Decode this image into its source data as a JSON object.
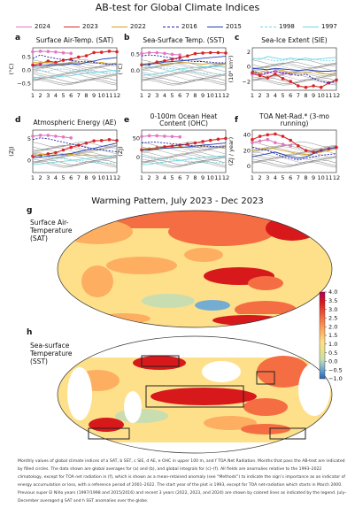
{
  "figure": {
    "title": "AB-test for Global Climate Indices",
    "legend": [
      {
        "label": "2024",
        "color": "#e377c2",
        "dash": "solid"
      },
      {
        "label": "2023",
        "color": "#d62728",
        "dash": "solid"
      },
      {
        "label": "2022",
        "color": "#d4a017",
        "dash": "solid"
      },
      {
        "label": "2016",
        "color": "#1f1fb4",
        "dash": "dashed"
      },
      {
        "label": "2015",
        "color": "#1f3fb4",
        "dash": "solid"
      },
      {
        "label": "1998",
        "color": "#6fd6e6",
        "dash": "dashed"
      },
      {
        "label": "1997",
        "color": "#6fd6e6",
        "dash": "solid"
      }
    ],
    "panels": [
      {
        "letter": "a",
        "title": "Surface Air-Temp. (SAT)",
        "ylabel": "(°C)",
        "yticks": [
          "0.5",
          "0.0",
          "−0.5"
        ]
      },
      {
        "letter": "b",
        "title": "Sea-Surface Temp. (SST)",
        "ylabel": "(°C)",
        "yticks": [
          "0.5",
          "0.0"
        ]
      },
      {
        "letter": "c",
        "title": "Sea-Ice Extent (SIE)",
        "ylabel": "(10⁶ km²)",
        "yticks": [
          "2",
          "0",
          "−2"
        ]
      },
      {
        "letter": "d",
        "title": "Atmospheric Energy (AE)",
        "ylabel": "(ZJ)",
        "yticks": [
          "5",
          "0"
        ]
      },
      {
        "letter": "e",
        "title": "0-100m Ocean Heat Content (OHC)",
        "ylabel": "(ZJ)",
        "yticks": [
          "50",
          "0"
        ]
      },
      {
        "letter": "f",
        "title": "TOA Net-Rad.* (3-mo running)",
        "ylabel": "(ZJ / year)",
        "yticks": [
          "40",
          "20",
          "0"
        ]
      }
    ],
    "xticks": [
      "1",
      "2",
      "3",
      "4",
      "5",
      "6",
      "7",
      "8",
      "9",
      "10",
      "11",
      "12"
    ],
    "map_title": "Warming Pattern, July 2023 - Dec 2023",
    "maps": [
      {
        "letter": "g",
        "label": "Surface Air- Temperature (SAT)"
      },
      {
        "letter": "h",
        "label": "Sea-surface Temperature (SST)"
      }
    ],
    "colorbar": {
      "ticks": [
        "4.0",
        "3.5",
        "3.0",
        "2.5",
        "2.0",
        "1.5",
        "1.0",
        "0.5",
        "0.0",
        "−0.5",
        "−1.0"
      ]
    },
    "caption": "Monthly values of global climate indices of a SAT, b SST, c SIE, d AE, e OHC in upper 100 m, and f TOA Net Radiation. Months that pass the AB-test are indicated by filled circles. The data shown are global averages for (a) and (b), and global integrals for (c)–(f). All fields are anomalies relative to the 1993–2022 climatology, except for TOA net radiation in (f), which is shown as a mean-retained anomaly (see “Methods”) to indicate the sign’s importance as an indicator of energy accumulation or loss, with a reference period of 2001–2022. The start year of the plot is 1993, except for TOA net-radiation which starts in March 2000. Previous super El Niño years (1997/1998 and 2015/2016) and recent 3 years (2022, 2023, and 2024) are shown by colored lines as indicated by the legend. July–December averaged g SAT and h SST anomalies over the globe."
  },
  "chart_data": [
    {
      "type": "line",
      "panel": "a",
      "title": "Surface Air-Temp. (SAT)",
      "ylabel": "(°C)",
      "x": [
        1,
        2,
        3,
        4,
        5,
        6,
        7,
        8,
        9,
        10,
        11,
        12
      ],
      "ylim": [
        -0.75,
        0.85
      ],
      "series": [
        {
          "name": "2024",
          "values": [
            0.7,
            0.72,
            0.71,
            0.69,
            0.66,
            0.64,
            null,
            null,
            null,
            null,
            null,
            null
          ]
        },
        {
          "name": "2023",
          "values": [
            0.2,
            0.25,
            0.35,
            0.3,
            0.38,
            0.42,
            0.5,
            0.55,
            0.67,
            0.68,
            0.72,
            0.7
          ]
        },
        {
          "name": "2022",
          "values": [
            0.3,
            0.28,
            0.3,
            0.25,
            0.24,
            0.28,
            0.26,
            0.3,
            0.26,
            0.3,
            0.24,
            0.28
          ]
        },
        {
          "name": "2016",
          "values": [
            0.45,
            0.58,
            0.5,
            0.45,
            0.4,
            0.38,
            0.32,
            0.35,
            0.3,
            0.25,
            0.24,
            0.22
          ]
        },
        {
          "name": "2015",
          "values": [
            0.15,
            0.18,
            0.2,
            0.22,
            0.2,
            0.25,
            0.22,
            0.3,
            0.35,
            0.42,
            0.45,
            0.48
          ]
        },
        {
          "name": "1998",
          "values": [
            -0.05,
            0.0,
            -0.05,
            0.05,
            0.05,
            0.0,
            0.05,
            -0.02,
            -0.05,
            -0.08,
            -0.1,
            -0.12
          ]
        },
        {
          "name": "1997",
          "values": [
            -0.3,
            -0.25,
            -0.28,
            -0.25,
            -0.22,
            -0.2,
            -0.15,
            -0.1,
            -0.08,
            -0.05,
            -0.02,
            0.0
          ]
        }
      ]
    },
    {
      "type": "line",
      "panel": "b",
      "title": "Sea-Surface Temp. (SST)",
      "ylabel": "(°C)",
      "x": [
        1,
        2,
        3,
        4,
        5,
        6,
        7,
        8,
        9,
        10,
        11,
        12
      ],
      "ylim": [
        -0.6,
        0.7
      ],
      "series": [
        {
          "name": "2024",
          "values": [
            0.52,
            0.55,
            0.55,
            0.53,
            0.5,
            0.48,
            null,
            null,
            null,
            null,
            null,
            null
          ]
        },
        {
          "name": "2023",
          "values": [
            0.18,
            0.2,
            0.26,
            0.3,
            0.35,
            0.4,
            0.45,
            0.52,
            0.54,
            0.55,
            0.55,
            0.54
          ]
        },
        {
          "name": "2022",
          "values": [
            0.2,
            0.22,
            0.22,
            0.2,
            0.22,
            0.24,
            0.24,
            0.22,
            0.2,
            0.22,
            0.22,
            0.2
          ]
        },
        {
          "name": "2016",
          "values": [
            0.45,
            0.48,
            0.46,
            0.42,
            0.38,
            0.34,
            0.3,
            0.28,
            0.28,
            0.26,
            0.24,
            0.24
          ]
        },
        {
          "name": "2015",
          "values": [
            0.18,
            0.2,
            0.22,
            0.26,
            0.28,
            0.3,
            0.32,
            0.35,
            0.38,
            0.4,
            0.42,
            0.44
          ]
        },
        {
          "name": "1998",
          "values": [
            0.1,
            0.12,
            0.1,
            0.08,
            0.06,
            0.02,
            -0.02,
            -0.05,
            -0.08,
            -0.08,
            -0.1,
            -0.12
          ]
        },
        {
          "name": "1997",
          "values": [
            -0.15,
            -0.12,
            -0.1,
            -0.05,
            0.0,
            0.05,
            0.08,
            0.1,
            0.12,
            0.12,
            0.12,
            0.1
          ]
        }
      ]
    },
    {
      "type": "line",
      "panel": "c",
      "title": "Sea-Ice Extent (SIE)",
      "ylabel": "(10⁶ km²)",
      "x": [
        1,
        2,
        3,
        4,
        5,
        6,
        7,
        8,
        9,
        10,
        11,
        12
      ],
      "ylim": [
        -3.2,
        2.6
      ],
      "series": [
        {
          "name": "2024",
          "values": [
            -1.0,
            -1.2,
            -0.8,
            -0.6,
            -0.9,
            -1.0,
            null,
            null,
            null,
            null,
            null,
            null
          ]
        },
        {
          "name": "2023",
          "values": [
            -0.8,
            -1.2,
            -1.5,
            -1.0,
            -1.6,
            -2.0,
            -2.6,
            -2.8,
            -2.6,
            -2.8,
            -2.2,
            -1.8
          ]
        },
        {
          "name": "2022",
          "values": [
            -0.6,
            -0.8,
            -0.4,
            -0.3,
            -0.5,
            -0.8,
            -0.9,
            -0.8,
            -0.6,
            -0.9,
            -1.0,
            -0.8
          ]
        },
        {
          "name": "2016",
          "values": [
            -0.5,
            -1.0,
            -0.8,
            -0.6,
            -0.8,
            -1.0,
            -1.2,
            -1.0,
            -1.6,
            -2.0,
            -2.2,
            -2.0
          ]
        },
        {
          "name": "2015",
          "values": [
            -0.2,
            -0.3,
            -0.4,
            -0.2,
            -0.3,
            -0.4,
            -0.5,
            -0.4,
            -0.5,
            -0.6,
            -0.6,
            -0.5
          ]
        },
        {
          "name": "1998",
          "values": [
            1.0,
            1.2,
            1.0,
            0.8,
            0.9,
            1.0,
            1.1,
            0.9,
            1.0,
            0.9,
            0.8,
            0.9
          ]
        },
        {
          "name": "1997",
          "values": [
            1.2,
            1.0,
            1.4,
            1.2,
            1.0,
            1.2,
            1.0,
            1.2,
            1.0,
            1.1,
            1.2,
            1.3
          ]
        }
      ]
    },
    {
      "type": "line",
      "panel": "d",
      "title": "Atmospheric Energy (AE)",
      "ylabel": "(ZJ)",
      "x": [
        1,
        2,
        3,
        4,
        5,
        6,
        7,
        8,
        9,
        10,
        11,
        12
      ],
      "ylim": [
        -2.8,
        7.0
      ],
      "series": [
        {
          "name": "2024",
          "values": [
            5.6,
            5.8,
            5.8,
            5.6,
            5.4,
            5.2,
            null,
            null,
            null,
            null,
            null,
            null
          ]
        },
        {
          "name": "2023",
          "values": [
            1.0,
            1.2,
            1.5,
            1.8,
            2.4,
            3.0,
            3.5,
            4.0,
            4.5,
            4.6,
            4.8,
            4.6
          ]
        },
        {
          "name": "2022",
          "values": [
            1.6,
            1.4,
            1.2,
            1.3,
            1.2,
            1.4,
            1.2,
            1.3,
            1.1,
            1.2,
            1.0,
            1.2
          ]
        },
        {
          "name": "2016",
          "values": [
            4.8,
            5.2,
            5.0,
            4.6,
            4.2,
            3.8,
            3.4,
            3.0,
            2.6,
            2.4,
            2.2,
            2.0
          ]
        },
        {
          "name": "2015",
          "values": [
            0.6,
            0.8,
            1.0,
            1.2,
            1.4,
            1.6,
            2.0,
            2.4,
            2.8,
            3.2,
            3.6,
            4.0
          ]
        },
        {
          "name": "1998",
          "values": [
            1.2,
            1.0,
            0.8,
            0.6,
            0.4,
            0.2,
            0.0,
            -0.2,
            -0.4,
            -0.5,
            -0.6,
            -0.8
          ]
        },
        {
          "name": "1997",
          "values": [
            -1.0,
            -0.8,
            -0.6,
            -0.4,
            -0.2,
            0.0,
            0.2,
            0.4,
            0.6,
            0.8,
            1.0,
            1.2
          ]
        }
      ]
    },
    {
      "type": "line",
      "panel": "e",
      "title": "0-100m Ocean Heat Content (OHC)",
      "ylabel": "(ZJ)",
      "x": [
        1,
        2,
        3,
        4,
        5,
        6,
        7,
        8,
        9,
        10,
        11,
        12
      ],
      "ylim": [
        -40,
        72
      ],
      "series": [
        {
          "name": "2024",
          "values": [
            55,
            57,
            57,
            56,
            55,
            54,
            null,
            null,
            null,
            null,
            null,
            null
          ]
        },
        {
          "name": "2023",
          "values": [
            20,
            22,
            25,
            28,
            30,
            32,
            35,
            38,
            42,
            45,
            48,
            50
          ]
        },
        {
          "name": "2022",
          "values": [
            22,
            24,
            25,
            24,
            26,
            28,
            27,
            26,
            28,
            27,
            26,
            25
          ]
        },
        {
          "name": "2016",
          "values": [
            38,
            40,
            40,
            38,
            36,
            34,
            32,
            30,
            30,
            29,
            28,
            28
          ]
        },
        {
          "name": "2015",
          "values": [
            20,
            21,
            22,
            24,
            25,
            26,
            28,
            30,
            32,
            34,
            36,
            38
          ]
        },
        {
          "name": "1998",
          "values": [
            2,
            0,
            -2,
            -4,
            -6,
            -8,
            -10,
            -12,
            -12,
            -13,
            -14,
            -15
          ]
        },
        {
          "name": "1997",
          "values": [
            -20,
            -18,
            -15,
            -12,
            -10,
            -8,
            -5,
            -3,
            0,
            2,
            3,
            4
          ]
        }
      ]
    },
    {
      "type": "line",
      "panel": "f",
      "title": "TOA Net-Rad.* (3-mo running)",
      "ylabel": "(ZJ / year)",
      "x": [
        1,
        2,
        3,
        4,
        5,
        6,
        7,
        8,
        9,
        10,
        11,
        12
      ],
      "ylim": [
        -8,
        46
      ],
      "series": [
        {
          "name": "2024",
          "values": [
            30,
            32,
            34,
            30,
            28,
            26,
            null,
            null,
            null,
            null,
            null,
            null
          ]
        },
        {
          "name": "2023",
          "values": [
            34,
            38,
            40,
            41,
            38,
            33,
            26,
            20,
            18,
            20,
            22,
            24
          ]
        },
        {
          "name": "2022",
          "values": [
            20,
            22,
            24,
            22,
            20,
            18,
            16,
            15,
            16,
            18,
            20,
            22
          ]
        },
        {
          "name": "2016",
          "values": [
            24,
            22,
            20,
            16,
            12,
            10,
            8,
            10,
            12,
            14,
            15,
            16
          ]
        },
        {
          "name": "2015",
          "values": [
            12,
            14,
            16,
            18,
            15,
            12,
            10,
            12,
            16,
            20,
            22,
            24
          ]
        },
        {
          "name": "1998",
          "values": [
            null,
            null,
            null,
            null,
            null,
            null,
            null,
            null,
            null,
            null,
            null,
            null
          ]
        },
        {
          "name": "1997",
          "values": [
            null,
            null,
            null,
            null,
            null,
            null,
            null,
            null,
            null,
            null,
            null,
            null
          ]
        }
      ]
    }
  ]
}
